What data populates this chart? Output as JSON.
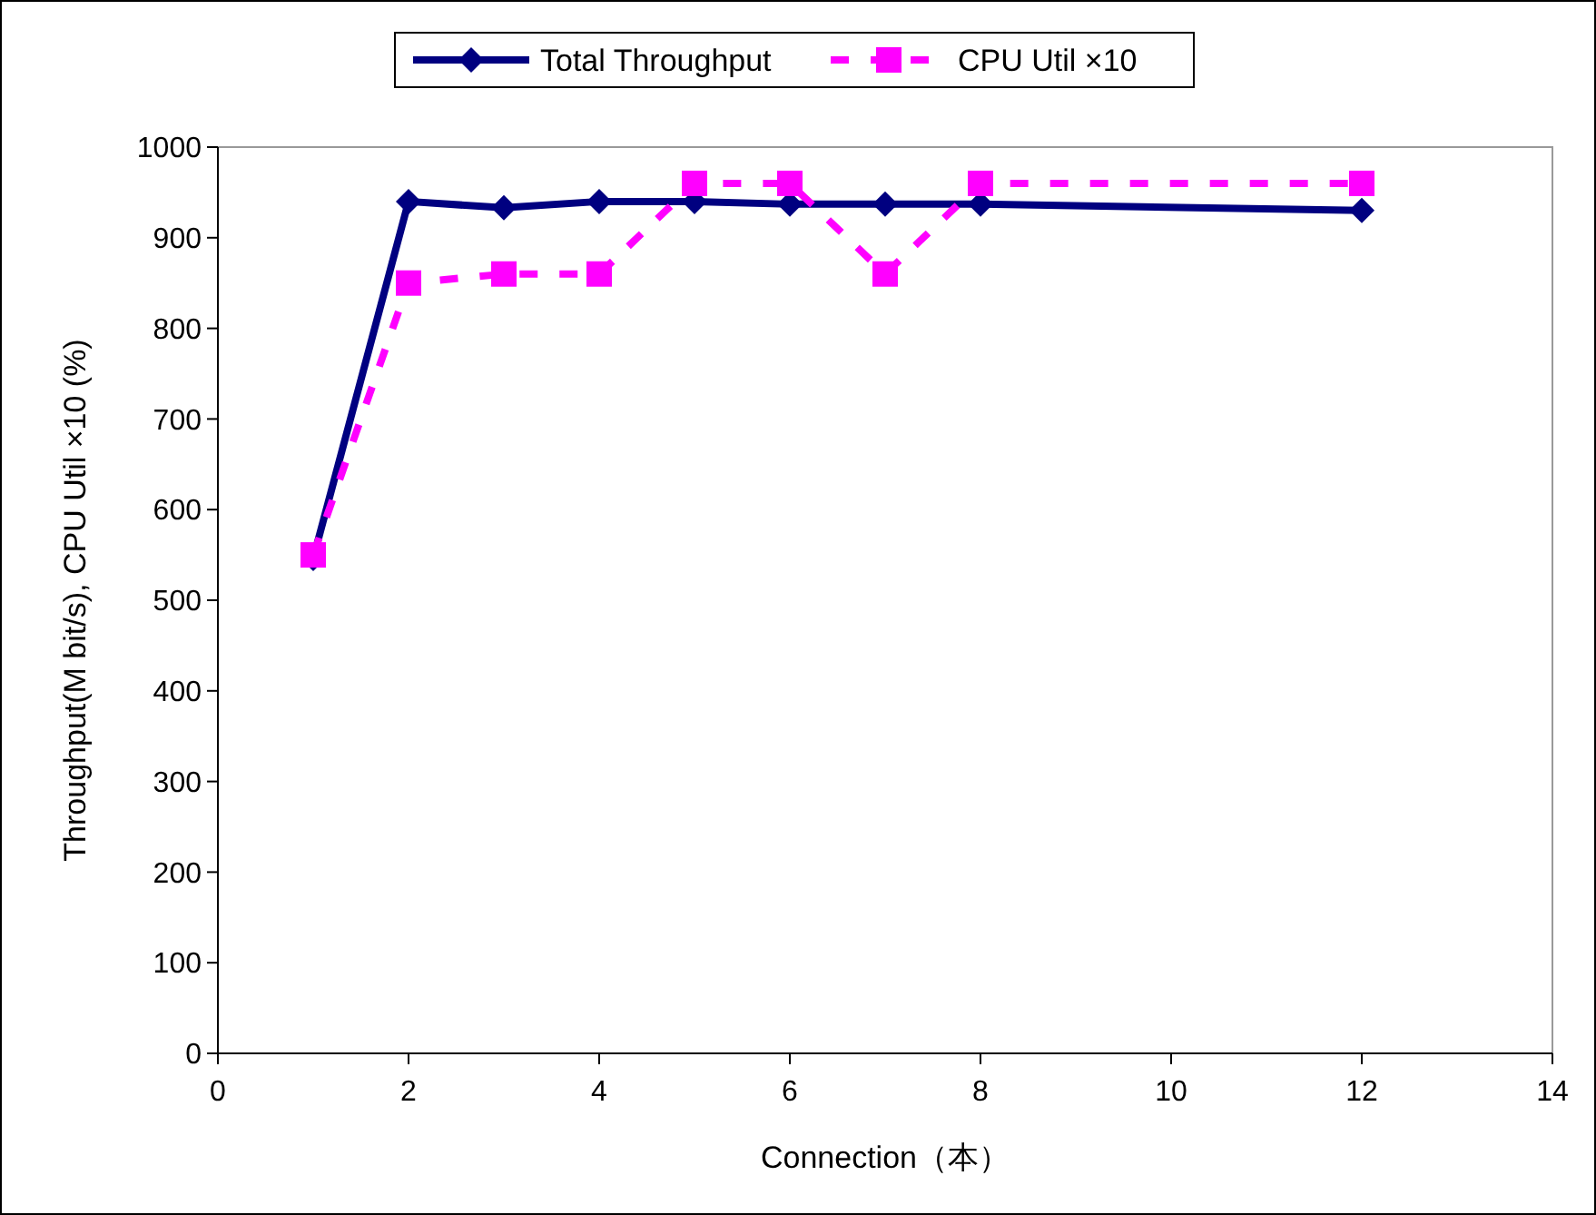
{
  "chart_data": {
    "type": "line",
    "xlabel": "Connection（本）",
    "ylabel": "Throughput(M bit/s), CPU Util ×10 (%)",
    "x": [
      1,
      2,
      3,
      4,
      5,
      6,
      7,
      8,
      12
    ],
    "series": [
      {
        "name": "Total Throughput",
        "color": "#000080",
        "marker": "diamond",
        "line_style": "solid",
        "values": [
          546,
          940,
          933,
          940,
          940,
          937,
          937,
          937,
          930
        ]
      },
      {
        "name": "CPU Util ×10",
        "color": "#ff00ff",
        "marker": "square",
        "line_style": "dashed",
        "values": [
          550,
          850,
          860,
          860,
          960,
          960,
          860,
          960,
          960
        ]
      }
    ],
    "xlim": [
      0,
      14
    ],
    "xticks": [
      0,
      2,
      4,
      6,
      8,
      10,
      12,
      14
    ],
    "ylim": [
      0,
      1000
    ],
    "yticks": [
      0,
      100,
      200,
      300,
      400,
      500,
      600,
      700,
      800,
      900,
      1000
    ],
    "grid": false,
    "legend": "top"
  }
}
